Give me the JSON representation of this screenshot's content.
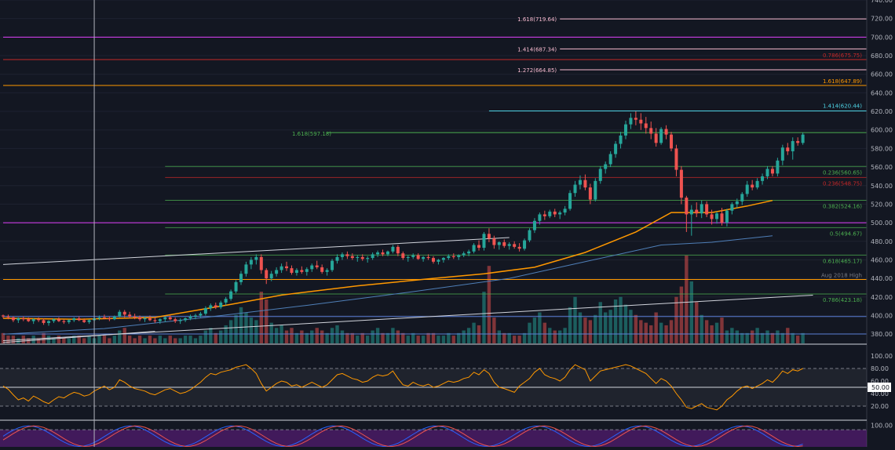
{
  "chart_data": {
    "type": "candlestick",
    "price_axis": {
      "ylim": [
        370,
        740
      ],
      "ticks": [
        380,
        400,
        420,
        440,
        460,
        480,
        500,
        520,
        540,
        560,
        580,
        600,
        620,
        640,
        660,
        680,
        700,
        720,
        740
      ],
      "tick_labels": [
        "380.00",
        "400.00",
        "420.00",
        "440.00",
        "460.00",
        "480.00",
        "500.00",
        "520.00",
        "540.00",
        "560.00",
        "580.00",
        "600.00",
        "620.00",
        "640.00",
        "660.00",
        "680.00",
        "700.00",
        "720.00",
        "740.00"
      ]
    },
    "x_range": [
      0,
      170
    ],
    "last_price": {
      "value": 595.83,
      "label": "595.83",
      "color": "#26a69a"
    },
    "horizontal_levels": [
      {
        "value": 700,
        "label": "700.00",
        "color": "#e040fb",
        "start": 0,
        "badge": true
      },
      {
        "value": 647.89,
        "label": "1.618(647.89)",
        "color": "#ff9800",
        "start": 0,
        "badge": false
      },
      {
        "value": 675.75,
        "label": "0.786(675.75)",
        "color": "#c62828",
        "start": 0,
        "badge": false
      },
      {
        "value": 500,
        "label": "500.00",
        "color": "#e040fb",
        "start": 0,
        "badge": true
      },
      {
        "value": 438.84,
        "label": "438.84",
        "color": "#ff9800",
        "start": 0,
        "badge": true,
        "name": "Aug 2018 High"
      },
      {
        "value": 398.89,
        "label": "398.89",
        "color": "#5b7fd6",
        "start": 0,
        "badge": true
      },
      {
        "value": 380.16,
        "label": "380.16",
        "color": "#5b7fd6",
        "start": 0,
        "badge": true
      }
    ],
    "fib_extension_levels": [
      {
        "value": 719.64,
        "label": "1.618(719.64)",
        "color": "#f8bbd0",
        "start": 110
      },
      {
        "value": 687.34,
        "label": "1.414(687.34)",
        "color": "#f8bbd0",
        "start": 110
      },
      {
        "value": 664.85,
        "label": "1.272(664.85)",
        "color": "#f8bbd0",
        "start": 110
      },
      {
        "value": 620.44,
        "label": "1.414(620.44)",
        "color": "#4dd0e1",
        "start": 96
      },
      {
        "value": 597.18,
        "label": "1.618(597.18)",
        "color": "#4caf50",
        "start": 64
      }
    ],
    "fib_retracement_levels": [
      {
        "value": 560.65,
        "label": "0.236(560.65)",
        "color": "#4caf50"
      },
      {
        "value": 548.75,
        "label": "0.236(548.75)",
        "color": "#c62828"
      },
      {
        "value": 524.16,
        "label": "0.382(524.16)",
        "color": "#4caf50"
      },
      {
        "value": 494.67,
        "label": "0.5(494.67)",
        "color": "#4caf50"
      },
      {
        "value": 465.17,
        "label": "0.618(465.17)",
        "color": "#4caf50"
      },
      {
        "value": 423.18,
        "label": "0.786(423.18)",
        "color": "#4caf50"
      }
    ],
    "fib_start": 32,
    "trendlines": [
      {
        "points": [
          [
            0,
            455
          ],
          [
            100,
            484
          ]
        ],
        "color": "#d1d4dc"
      },
      {
        "points": [
          [
            0,
            373
          ],
          [
            160,
            422
          ]
        ],
        "color": "#d1d4dc"
      },
      {
        "points": [
          [
            0,
            371
          ],
          [
            30,
            383
          ]
        ],
        "color": "#d1d4dc"
      }
    ],
    "vertical_line_x": 18,
    "sma_orange": [
      [
        0,
        397
      ],
      [
        15,
        396
      ],
      [
        30,
        398
      ],
      [
        45,
        412
      ],
      [
        55,
        422
      ],
      [
        70,
        432
      ],
      [
        85,
        440
      ],
      [
        95,
        445
      ],
      [
        105,
        452
      ],
      [
        115,
        468
      ],
      [
        125,
        490
      ],
      [
        132,
        511
      ],
      [
        140,
        511
      ],
      [
        147,
        518
      ],
      [
        152,
        524
      ]
    ],
    "sma_blue": [
      [
        0,
        380
      ],
      [
        20,
        386
      ],
      [
        40,
        398
      ],
      [
        60,
        411
      ],
      [
        80,
        425
      ],
      [
        100,
        440
      ],
      [
        115,
        458
      ],
      [
        130,
        476
      ],
      [
        140,
        479
      ],
      [
        152,
        486
      ]
    ],
    "candles": [
      [
        400,
        401,
        397,
        399
      ],
      [
        399,
        401,
        396,
        398
      ],
      [
        398,
        399,
        393,
        395
      ],
      [
        395,
        398,
        392,
        397
      ],
      [
        397,
        399,
        394,
        396
      ],
      [
        396,
        398,
        393,
        394
      ],
      [
        394,
        397,
        391,
        396
      ],
      [
        396,
        398,
        393,
        395
      ],
      [
        395,
        397,
        390,
        392
      ],
      [
        392,
        395,
        389,
        394
      ],
      [
        394,
        397,
        392,
        396
      ],
      [
        396,
        398,
        393,
        394
      ],
      [
        394,
        396,
        391,
        393
      ],
      [
        393,
        396,
        391,
        395
      ],
      [
        395,
        398,
        393,
        397
      ],
      [
        397,
        399,
        394,
        395
      ],
      [
        395,
        397,
        392,
        393
      ],
      [
        393,
        396,
        391,
        395
      ],
      [
        395,
        398,
        393,
        397
      ],
      [
        397,
        400,
        395,
        398
      ],
      [
        398,
        401,
        396,
        397
      ],
      [
        397,
        399,
        394,
        396
      ],
      [
        396,
        400,
        395,
        399
      ],
      [
        399,
        406,
        398,
        404
      ],
      [
        404,
        406,
        398,
        401
      ],
      [
        401,
        404,
        397,
        399
      ],
      [
        399,
        402,
        396,
        398
      ],
      [
        398,
        400,
        394,
        396
      ],
      [
        396,
        399,
        393,
        397
      ],
      [
        397,
        400,
        394,
        395
      ],
      [
        395,
        398,
        392,
        394
      ],
      [
        394,
        397,
        391,
        396
      ],
      [
        396,
        399,
        393,
        398
      ],
      [
        398,
        400,
        395,
        396
      ],
      [
        396,
        398,
        392,
        394
      ],
      [
        394,
        397,
        391,
        395
      ],
      [
        395,
        398,
        393,
        397
      ],
      [
        397,
        401,
        395,
        399
      ],
      [
        399,
        402,
        396,
        400
      ],
      [
        400,
        404,
        398,
        402
      ],
      [
        402,
        410,
        400,
        408
      ],
      [
        408,
        413,
        405,
        411
      ],
      [
        411,
        414,
        407,
        409
      ],
      [
        409,
        416,
        407,
        414
      ],
      [
        414,
        420,
        411,
        418
      ],
      [
        418,
        428,
        416,
        426
      ],
      [
        426,
        438,
        424,
        436
      ],
      [
        436,
        448,
        433,
        445
      ],
      [
        445,
        458,
        442,
        455
      ],
      [
        455,
        463,
        450,
        460
      ],
      [
        460,
        466,
        455,
        463
      ],
      [
        463,
        466,
        445,
        449
      ],
      [
        449,
        451,
        434,
        440
      ],
      [
        440,
        448,
        437,
        445
      ],
      [
        445,
        452,
        442,
        449
      ],
      [
        449,
        456,
        446,
        453
      ],
      [
        453,
        458,
        448,
        451
      ],
      [
        451,
        454,
        444,
        446
      ],
      [
        446,
        451,
        443,
        449
      ],
      [
        449,
        453,
        445,
        447
      ],
      [
        447,
        452,
        443,
        450
      ],
      [
        450,
        456,
        447,
        454
      ],
      [
        454,
        459,
        450,
        452
      ],
      [
        452,
        455,
        445,
        447
      ],
      [
        447,
        451,
        443,
        449
      ],
      [
        449,
        461,
        447,
        459
      ],
      [
        459,
        466,
        456,
        463
      ],
      [
        463,
        468,
        460,
        466
      ],
      [
        466,
        469,
        461,
        464
      ],
      [
        464,
        467,
        460,
        462
      ],
      [
        462,
        465,
        458,
        463
      ],
      [
        463,
        466,
        459,
        461
      ],
      [
        461,
        464,
        457,
        462
      ],
      [
        462,
        468,
        460,
        466
      ],
      [
        466,
        470,
        463,
        468
      ],
      [
        468,
        471,
        464,
        466
      ],
      [
        466,
        470,
        464,
        469
      ],
      [
        469,
        476,
        467,
        474
      ],
      [
        474,
        476,
        464,
        467
      ],
      [
        467,
        469,
        460,
        462
      ],
      [
        462,
        465,
        458,
        463
      ],
      [
        463,
        467,
        461,
        465
      ],
      [
        465,
        467,
        460,
        461
      ],
      [
        461,
        464,
        458,
        463
      ],
      [
        463,
        466,
        460,
        462
      ],
      [
        462,
        464,
        456,
        458
      ],
      [
        458,
        461,
        455,
        460
      ],
      [
        460,
        463,
        457,
        462
      ],
      [
        462,
        466,
        460,
        464
      ],
      [
        464,
        467,
        461,
        463
      ],
      [
        463,
        466,
        460,
        465
      ],
      [
        465,
        469,
        463,
        467
      ],
      [
        467,
        471,
        464,
        469
      ],
      [
        469,
        478,
        467,
        476
      ],
      [
        476,
        481,
        470,
        473
      ],
      [
        473,
        490,
        470,
        488
      ],
      [
        488,
        494,
        479,
        483
      ],
      [
        483,
        486,
        472,
        476
      ],
      [
        476,
        480,
        471,
        479
      ],
      [
        479,
        482,
        473,
        475
      ],
      [
        475,
        479,
        471,
        477
      ],
      [
        477,
        480,
        472,
        474
      ],
      [
        474,
        478,
        469,
        472
      ],
      [
        472,
        483,
        470,
        481
      ],
      [
        481,
        494,
        479,
        492
      ],
      [
        492,
        505,
        489,
        502
      ],
      [
        502,
        511,
        498,
        509
      ],
      [
        509,
        513,
        503,
        507
      ],
      [
        507,
        514,
        505,
        512
      ],
      [
        512,
        515,
        506,
        509
      ],
      [
        509,
        513,
        504,
        511
      ],
      [
        511,
        518,
        508,
        515
      ],
      [
        515,
        535,
        513,
        532
      ],
      [
        532,
        545,
        528,
        541
      ],
      [
        541,
        551,
        536,
        546
      ],
      [
        546,
        552,
        535,
        538
      ],
      [
        538,
        542,
        520,
        525
      ],
      [
        525,
        548,
        523,
        545
      ],
      [
        545,
        561,
        542,
        558
      ],
      [
        558,
        566,
        553,
        563
      ],
      [
        563,
        577,
        560,
        574
      ],
      [
        574,
        588,
        570,
        585
      ],
      [
        585,
        598,
        580,
        594
      ],
      [
        594,
        610,
        590,
        606
      ],
      [
        606,
        618,
        601,
        613
      ],
      [
        613,
        620,
        605,
        611
      ],
      [
        611,
        618,
        600,
        607
      ],
      [
        607,
        614,
        596,
        602
      ],
      [
        602,
        609,
        590,
        596
      ],
      [
        596,
        602,
        582,
        586
      ],
      [
        586,
        603,
        584,
        601
      ],
      [
        601,
        605,
        590,
        595
      ],
      [
        595,
        598,
        577,
        580
      ],
      [
        580,
        584,
        550,
        557
      ],
      [
        557,
        561,
        520,
        527
      ],
      [
        527,
        529,
        490,
        509
      ],
      [
        509,
        519,
        486,
        514
      ],
      [
        514,
        522,
        506,
        510
      ],
      [
        510,
        524,
        505,
        520
      ],
      [
        520,
        523,
        506,
        509
      ],
      [
        509,
        514,
        498,
        504
      ],
      [
        504,
        512,
        499,
        510
      ],
      [
        510,
        516,
        497,
        500
      ],
      [
        500,
        515,
        496,
        513
      ],
      [
        513,
        522,
        509,
        520
      ],
      [
        520,
        526,
        516,
        523
      ],
      [
        523,
        533,
        519,
        531
      ],
      [
        531,
        545,
        528,
        541
      ],
      [
        541,
        546,
        535,
        538
      ],
      [
        538,
        548,
        536,
        545
      ],
      [
        545,
        553,
        541,
        550
      ],
      [
        550,
        561,
        547,
        558
      ],
      [
        558,
        561,
        550,
        553
      ],
      [
        553,
        570,
        550,
        567
      ],
      [
        567,
        584,
        562,
        581
      ],
      [
        581,
        586,
        573,
        577
      ],
      [
        577,
        592,
        568,
        588
      ],
      [
        588,
        592,
        583,
        586
      ],
      [
        586,
        597,
        584,
        595
      ]
    ],
    "volume": [
      4,
      3,
      3,
      2,
      3,
      2,
      3,
      2,
      4,
      3,
      2,
      3,
      2,
      2,
      3,
      3,
      2,
      3,
      2,
      3,
      3,
      2,
      3,
      5,
      6,
      3,
      2,
      3,
      2,
      3,
      2,
      3,
      2,
      3,
      2,
      2,
      3,
      3,
      2,
      3,
      5,
      6,
      4,
      5,
      7,
      9,
      11,
      14,
      12,
      10,
      9,
      20,
      17,
      8,
      6,
      7,
      5,
      6,
      4,
      5,
      4,
      5,
      6,
      5,
      4,
      6,
      7,
      5,
      4,
      4,
      3,
      4,
      3,
      5,
      6,
      4,
      4,
      6,
      5,
      4,
      3,
      4,
      3,
      3,
      4,
      4,
      3,
      3,
      4,
      3,
      4,
      5,
      6,
      8,
      7,
      20,
      30,
      10,
      5,
      4,
      4,
      3,
      3,
      4,
      8,
      10,
      12,
      8,
      6,
      5,
      5,
      6,
      14,
      18,
      12,
      10,
      9,
      11,
      16,
      12,
      13,
      17,
      18,
      15,
      13,
      11,
      9,
      8,
      7,
      12,
      8,
      7,
      9,
      18,
      22,
      34,
      24,
      16,
      11,
      9,
      7,
      8,
      10,
      5,
      6,
      5,
      4,
      4,
      5,
      6,
      4,
      5,
      4,
      5,
      4,
      6,
      4,
      3,
      4
    ],
    "rsi": {
      "ylim": [
        0,
        110
      ],
      "ticks": [
        20,
        40,
        60,
        80,
        100
      ],
      "tick_labels": [
        "20.00",
        "40.00",
        "60.00",
        "80.00",
        "100.00"
      ],
      "level_marker": {
        "value": 50,
        "label": "50.00"
      },
      "bands": [
        20,
        80
      ],
      "values": [
        52,
        47,
        38,
        30,
        33,
        28,
        36,
        32,
        27,
        24,
        30,
        35,
        33,
        38,
        42,
        40,
        36,
        38,
        44,
        48,
        52,
        46,
        50,
        62,
        58,
        52,
        48,
        46,
        44,
        40,
        38,
        42,
        46,
        48,
        44,
        40,
        42,
        46,
        52,
        58,
        66,
        72,
        70,
        74,
        76,
        78,
        82,
        84,
        86,
        80,
        72,
        56,
        44,
        50,
        56,
        60,
        58,
        52,
        54,
        50,
        54,
        58,
        54,
        50,
        54,
        62,
        70,
        72,
        68,
        64,
        62,
        58,
        60,
        66,
        70,
        68,
        70,
        76,
        64,
        54,
        52,
        58,
        54,
        52,
        55,
        50,
        52,
        56,
        60,
        58,
        60,
        64,
        66,
        74,
        70,
        78,
        72,
        58,
        50,
        48,
        45,
        42,
        52,
        58,
        64,
        74,
        80,
        70,
        66,
        64,
        60,
        66,
        78,
        86,
        82,
        78,
        60,
        68,
        76,
        78,
        80,
        82,
        84,
        86,
        84,
        80,
        76,
        72,
        64,
        56,
        64,
        60,
        52,
        40,
        30,
        18,
        16,
        20,
        24,
        18,
        16,
        14,
        20,
        30,
        36,
        44,
        50,
        52,
        48,
        52,
        56,
        62,
        58,
        66,
        76,
        72,
        78,
        76,
        80
      ]
    },
    "stoch": {
      "ylim": [
        0,
        110
      ],
      "tick": 100,
      "tick_label": "100.00",
      "band_top": 80
    }
  }
}
